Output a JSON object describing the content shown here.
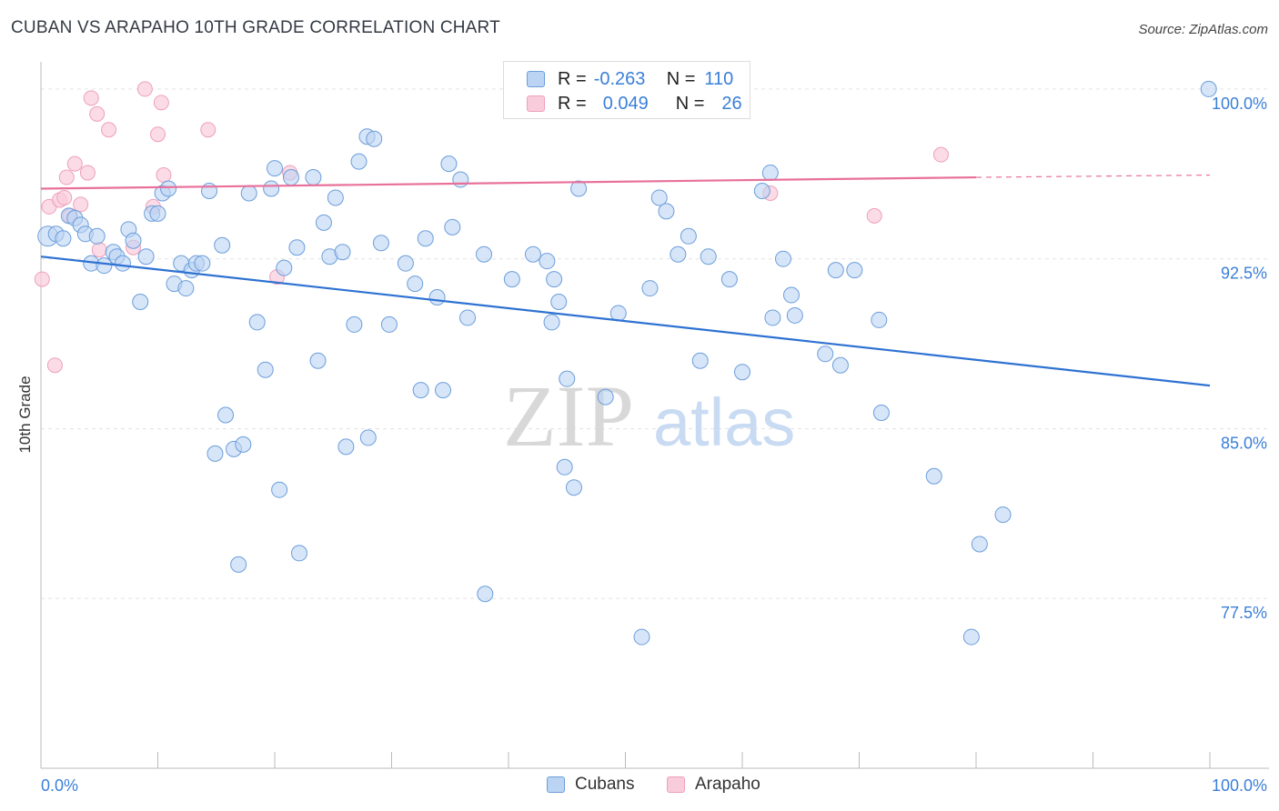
{
  "title": "CUBAN VS ARAPAHO 10TH GRADE CORRELATION CHART",
  "source": "Source: ZipAtlas.com",
  "watermark": {
    "zip": "ZIP",
    "atlas": "atlas"
  },
  "legend_top": {
    "rows": [
      {
        "r_label": "R =",
        "r_value": "-0.263",
        "n_label": "N =",
        "n_value": "110"
      },
      {
        "r_label": "R =",
        "r_value": "0.049",
        "n_label": "N =",
        "n_value": "26"
      }
    ]
  },
  "colors": {
    "cuban_fill": "#bcd4f3",
    "cuban_stroke": "#6b9edb",
    "cuban_line": "#2e72d2",
    "arapaho_fill": "#f9ccdb",
    "arapaho_stroke": "#eea0ba",
    "arapaho_line": "#e8709a",
    "axis_text": "#3a7fd8",
    "grid": "#e3e3e3"
  },
  "chart_data": {
    "type": "scatter",
    "title": "CUBAN VS ARAPAHO 10TH GRADE CORRELATION CHART",
    "xlabel": "",
    "ylabel": "10th Grade",
    "xlim": [
      0,
      100
    ],
    "ylim": [
      70.0,
      100.8
    ],
    "x_tick_labels": [
      "0.0%",
      "100.0%"
    ],
    "y_ticks": [
      77.5,
      85.0,
      92.5,
      100.0
    ],
    "y_tick_labels": [
      "77.5%",
      "85.0%",
      "92.5%",
      "100.0%"
    ],
    "grid": true,
    "legend_position": "bottom",
    "series": [
      {
        "name": "Cubans",
        "r": -0.263,
        "n": 110,
        "trend": {
          "x": [
            0,
            100
          ],
          "y": [
            92.6,
            86.9
          ]
        },
        "points": [
          [
            0.6,
            93.5
          ],
          [
            1.3,
            93.6
          ],
          [
            1.9,
            93.4
          ],
          [
            2.4,
            94.4
          ],
          [
            2.9,
            94.3
          ],
          [
            3.4,
            94.0
          ],
          [
            3.8,
            93.6
          ],
          [
            4.3,
            92.3
          ],
          [
            4.8,
            93.5
          ],
          [
            5.4,
            92.2
          ],
          [
            6.2,
            92.8
          ],
          [
            6.5,
            92.6
          ],
          [
            7.0,
            92.3
          ],
          [
            7.5,
            93.8
          ],
          [
            7.9,
            93.3
          ],
          [
            8.5,
            90.6
          ],
          [
            9.0,
            92.6
          ],
          [
            9.5,
            94.5
          ],
          [
            10.0,
            94.5
          ],
          [
            10.4,
            95.4
          ],
          [
            10.9,
            95.6
          ],
          [
            11.4,
            91.4
          ],
          [
            12.0,
            92.3
          ],
          [
            12.4,
            91.2
          ],
          [
            12.9,
            92.0
          ],
          [
            13.3,
            92.3
          ],
          [
            13.8,
            92.3
          ],
          [
            14.4,
            95.5
          ],
          [
            14.9,
            83.9
          ],
          [
            15.5,
            93.1
          ],
          [
            15.8,
            85.6
          ],
          [
            16.5,
            84.1
          ],
          [
            16.9,
            79.0
          ],
          [
            17.3,
            84.3
          ],
          [
            17.8,
            95.4
          ],
          [
            18.5,
            89.7
          ],
          [
            19.2,
            87.6
          ],
          [
            19.7,
            95.6
          ],
          [
            20.0,
            96.5
          ],
          [
            20.4,
            82.3
          ],
          [
            20.8,
            92.1
          ],
          [
            21.4,
            96.1
          ],
          [
            21.9,
            93.0
          ],
          [
            22.1,
            79.5
          ],
          [
            23.3,
            96.1
          ],
          [
            23.7,
            88.0
          ],
          [
            24.2,
            94.1
          ],
          [
            24.7,
            92.6
          ],
          [
            25.2,
            95.2
          ],
          [
            25.8,
            92.8
          ],
          [
            26.1,
            84.2
          ],
          [
            26.8,
            89.6
          ],
          [
            27.2,
            96.8
          ],
          [
            27.9,
            97.9
          ],
          [
            28.0,
            84.6
          ],
          [
            28.5,
            97.8
          ],
          [
            29.1,
            93.2
          ],
          [
            29.8,
            89.6
          ],
          [
            31.2,
            92.3
          ],
          [
            32.0,
            91.4
          ],
          [
            32.5,
            86.7
          ],
          [
            32.9,
            93.4
          ],
          [
            33.9,
            90.8
          ],
          [
            34.4,
            86.7
          ],
          [
            34.9,
            96.7
          ],
          [
            35.2,
            93.9
          ],
          [
            35.9,
            96.0
          ],
          [
            36.5,
            89.9
          ],
          [
            37.9,
            92.7
          ],
          [
            38.0,
            77.7
          ],
          [
            40.3,
            91.6
          ],
          [
            42.1,
            92.7
          ],
          [
            43.3,
            92.4
          ],
          [
            43.7,
            89.7
          ],
          [
            43.9,
            91.6
          ],
          [
            44.3,
            90.6
          ],
          [
            44.8,
            83.3
          ],
          [
            45.0,
            87.2
          ],
          [
            45.6,
            82.4
          ],
          [
            46.0,
            95.6
          ],
          [
            48.3,
            86.4
          ],
          [
            49.4,
            90.1
          ],
          [
            51.4,
            75.8
          ],
          [
            52.1,
            91.2
          ],
          [
            52.9,
            95.2
          ],
          [
            53.5,
            94.6
          ],
          [
            54.5,
            92.7
          ],
          [
            55.4,
            93.5
          ],
          [
            56.4,
            88.0
          ],
          [
            57.1,
            92.6
          ],
          [
            58.9,
            91.6
          ],
          [
            60.0,
            87.5
          ],
          [
            61.7,
            95.5
          ],
          [
            62.4,
            96.3
          ],
          [
            62.6,
            89.9
          ],
          [
            63.5,
            92.5
          ],
          [
            64.2,
            90.9
          ],
          [
            64.5,
            90.0
          ],
          [
            67.1,
            88.3
          ],
          [
            68.0,
            92.0
          ],
          [
            68.4,
            87.8
          ],
          [
            69.6,
            92.0
          ],
          [
            71.7,
            89.8
          ],
          [
            71.9,
            85.7
          ],
          [
            76.4,
            82.9
          ],
          [
            79.6,
            75.8
          ],
          [
            80.3,
            79.9
          ],
          [
            82.3,
            81.2
          ],
          [
            99.9,
            100.0
          ]
        ]
      },
      {
        "name": "Arapaho",
        "r": 0.049,
        "n": 26,
        "trend": {
          "x": [
            0,
            80
          ],
          "y": [
            95.6,
            96.1
          ]
        },
        "trend_dashed_to": {
          "x": 100,
          "y": 96.2
        },
        "points": [
          [
            0.1,
            91.6
          ],
          [
            0.7,
            94.8
          ],
          [
            1.2,
            87.8
          ],
          [
            1.6,
            95.1
          ],
          [
            2.0,
            95.2
          ],
          [
            2.2,
            96.1
          ],
          [
            2.5,
            94.4
          ],
          [
            2.9,
            96.7
          ],
          [
            3.4,
            94.9
          ],
          [
            4.0,
            96.3
          ],
          [
            4.3,
            99.6
          ],
          [
            4.8,
            98.9
          ],
          [
            5.0,
            92.9
          ],
          [
            5.8,
            98.2
          ],
          [
            7.9,
            93.0
          ],
          [
            8.9,
            100.0
          ],
          [
            9.6,
            94.8
          ],
          [
            10.0,
            98.0
          ],
          [
            10.3,
            99.4
          ],
          [
            10.5,
            96.2
          ],
          [
            14.3,
            98.2
          ],
          [
            20.2,
            91.7
          ],
          [
            21.3,
            96.3
          ],
          [
            62.4,
            95.4
          ],
          [
            71.3,
            94.4
          ],
          [
            77.0,
            97.1
          ]
        ]
      }
    ]
  },
  "bottom_legend": [
    "Cubans",
    "Arapaho"
  ]
}
